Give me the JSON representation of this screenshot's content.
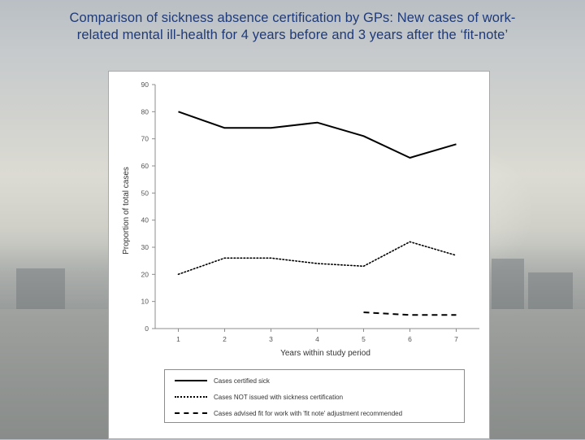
{
  "title": {
    "line1": "Comparison of sickness absence certification by GPs: New cases of work-",
    "line2": "related mental ill-health for 4 years before and 3 years after the ‘fit-note’"
  },
  "colors": {
    "title": "#1f3a78",
    "line": "#000000",
    "panel": "#ffffff"
  },
  "chart_data": {
    "type": "line",
    "x": [
      1,
      2,
      3,
      4,
      5,
      6,
      7
    ],
    "x_tick_labels": [
      "1",
      "2",
      "3",
      "4",
      "5",
      "6",
      "7"
    ],
    "y_tick_labels": [
      "0",
      "10",
      "20",
      "30",
      "40",
      "50",
      "60",
      "70",
      "80",
      "90"
    ],
    "xlabel": "Years within study period",
    "ylabel": "Proportion of total cases",
    "ylim": [
      0,
      90
    ],
    "grid": false,
    "legend_position": "bottom",
    "series": [
      {
        "name": "Cases certified sick",
        "style": "solid",
        "x": [
          1,
          2,
          3,
          4,
          5,
          6,
          7
        ],
        "values": [
          80,
          74,
          74,
          76,
          71,
          63,
          68
        ]
      },
      {
        "name": "Cases NOT issued with sickness certification",
        "style": "dotted",
        "x": [
          1,
          2,
          3,
          4,
          5,
          6,
          7
        ],
        "values": [
          20,
          26,
          26,
          24,
          23,
          32,
          27
        ]
      },
      {
        "name": "Cases advised fit for work with 'fit note' adjustment recommended",
        "style": "dashed",
        "x": [
          5,
          6,
          7
        ],
        "values": [
          6,
          5,
          5
        ]
      }
    ]
  }
}
